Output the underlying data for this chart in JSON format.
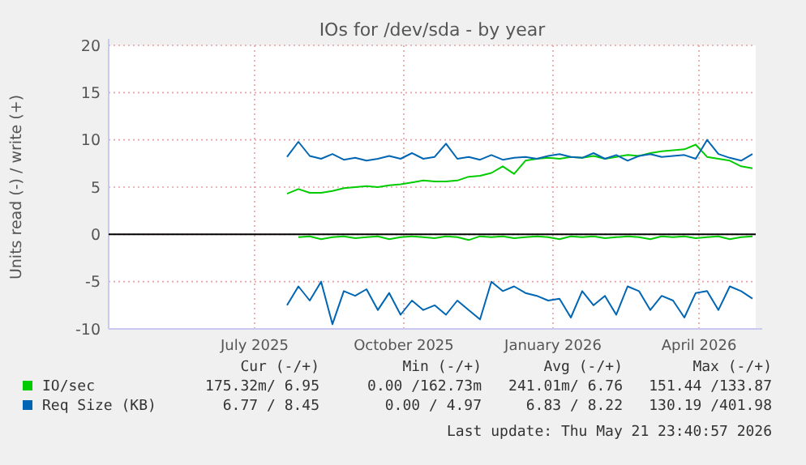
{
  "chart_data": {
    "type": "line",
    "title": "IOs for /dev/sda - by year",
    "ylabel": "Units read (-) / write (+)",
    "x": [
      "2025-07-21",
      "2025-07-28",
      "2025-08-04",
      "2025-08-11",
      "2025-08-18",
      "2025-08-25",
      "2025-09-01",
      "2025-09-08",
      "2025-09-15",
      "2025-09-22",
      "2025-09-29",
      "2025-10-06",
      "2025-10-13",
      "2025-10-20",
      "2025-10-27",
      "2025-11-03",
      "2025-11-10",
      "2025-11-17",
      "2025-11-24",
      "2025-12-01",
      "2025-12-08",
      "2025-12-15",
      "2025-12-22",
      "2025-12-29",
      "2026-01-05",
      "2026-01-12",
      "2026-01-19",
      "2026-01-26",
      "2026-02-02",
      "2026-02-09",
      "2026-02-16",
      "2026-02-23",
      "2026-03-02",
      "2026-03-09",
      "2026-03-16",
      "2026-03-23",
      "2026-03-30",
      "2026-04-06",
      "2026-04-13",
      "2026-04-20",
      "2026-04-27",
      "2026-05-04"
    ],
    "series": [
      {
        "name": "IO/sec",
        "color": "#00cc00",
        "values": [
          4.3,
          4.8,
          4.4,
          4.4,
          4.6,
          4.9,
          5.0,
          5.1,
          5.0,
          5.2,
          5.3,
          5.5,
          5.7,
          5.6,
          5.6,
          5.7,
          6.1,
          6.2,
          6.5,
          7.2,
          6.4,
          7.8,
          8.0,
          8.1,
          8.0,
          8.2,
          8.1,
          8.3,
          8.0,
          8.2,
          8.4,
          8.3,
          8.6,
          8.8,
          8.9,
          9.0,
          9.5,
          8.2,
          8.0,
          7.8,
          7.2,
          7.0
        ]
      },
      {
        "color": "#00cc00",
        "values": [
          null,
          -0.3,
          -0.2,
          -0.5,
          -0.3,
          -0.2,
          -0.4,
          -0.3,
          -0.2,
          -0.5,
          -0.3,
          -0.2,
          -0.3,
          -0.4,
          -0.2,
          -0.3,
          -0.6,
          -0.2,
          -0.3,
          -0.2,
          -0.4,
          -0.3,
          -0.2,
          -0.3,
          -0.5,
          -0.2,
          -0.3,
          -0.2,
          -0.4,
          -0.3,
          -0.2,
          -0.3,
          -0.5,
          -0.2,
          -0.3,
          -0.2,
          -0.4,
          -0.3,
          -0.2,
          -0.5,
          -0.3,
          -0.2
        ]
      },
      {
        "name": "Req Size (KB)",
        "color": "#0066b3",
        "values": [
          8.2,
          9.8,
          8.3,
          8.0,
          8.5,
          7.9,
          8.1,
          7.8,
          8.0,
          8.3,
          8.0,
          8.6,
          8.0,
          8.2,
          9.6,
          8.0,
          8.2,
          7.9,
          8.4,
          7.9,
          8.1,
          8.2,
          8.0,
          8.3,
          8.5,
          8.2,
          8.1,
          8.6,
          8.0,
          8.4,
          7.8,
          8.3,
          8.5,
          8.2,
          8.3,
          8.4,
          8.0,
          10.0,
          8.5,
          8.1,
          7.8,
          8.5
        ]
      },
      {
        "color": "#0066b3",
        "values": [
          -7.5,
          -5.5,
          -7.0,
          -5.0,
          -9.5,
          -6.0,
          -6.5,
          -5.8,
          -8.0,
          -6.2,
          -8.5,
          -7.0,
          -8.0,
          -7.5,
          -8.5,
          -7.0,
          -8.0,
          -9.0,
          -5.0,
          -6.0,
          -5.5,
          -6.2,
          -6.5,
          -7.0,
          -6.8,
          -8.8,
          -6.0,
          -7.5,
          -6.5,
          -8.5,
          -5.5,
          -6.0,
          -8.0,
          -6.5,
          -7.0,
          -8.8,
          -6.2,
          -6.0,
          -8.0,
          -5.5,
          -6.0,
          -6.8
        ]
      }
    ],
    "xlim": [
      "2025-04-02",
      "2026-05-06"
    ],
    "xticks": [
      {
        "value": "2025-07-01",
        "label": "July 2025"
      },
      {
        "value": "2025-10-01",
        "label": "October 2025"
      },
      {
        "value": "2026-01-01",
        "label": "January 2026"
      },
      {
        "value": "2026-04-01",
        "label": "April 2026"
      }
    ],
    "ylim": [
      -10,
      20
    ],
    "yticks": [
      -10,
      -5,
      0,
      5,
      10,
      15,
      20
    ],
    "ref_lines": [
      {
        "axis": "y",
        "value": 0,
        "color": "#000000"
      }
    ],
    "grid": true,
    "legend": "bottom",
    "marker": "none",
    "line_style": "solid",
    "annotations": [
      "Cur (-/+)",
      "Min (-/+)",
      "Avg (-/+)",
      "Max (-/+)",
      "175.32m/ 6.95",
      "0.00 /162.73m",
      "241.01m/ 6.76",
      "151.44 /133.87",
      "6.77 / 8.45",
      "0.00 / 4.97",
      "6.83 / 8.22",
      "130.19 /401.98",
      "Last update: Thu May 21 23:40:57 2026"
    ]
  }
}
